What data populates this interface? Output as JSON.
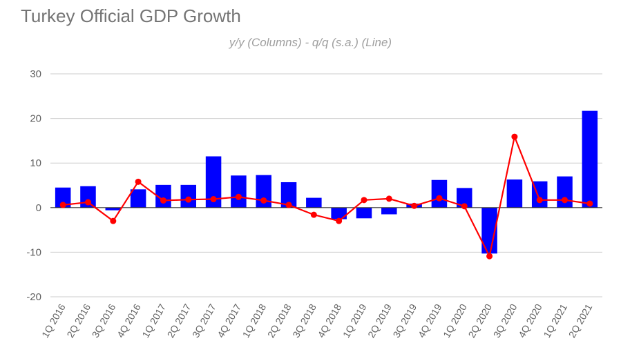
{
  "chart_data": {
    "type": "bar+line",
    "title": "Turkey Official GDP Growth",
    "subtitle": "y/y (Columns) - q/q (s.a.) (Line)",
    "categories": [
      "1Q 2016",
      "2Q 2016",
      "3Q 2016",
      "4Q 2016",
      "1Q 2017",
      "2Q 2017",
      "3Q 2017",
      "4Q 2017",
      "1Q 2018",
      "2Q 2018",
      "3Q 2018",
      "4Q 2018",
      "1Q 2019",
      "2Q 2019",
      "3Q 2019",
      "4Q 2019",
      "1Q 2020",
      "2Q 2020",
      "3Q 2020",
      "4Q 2020",
      "1Q 2021",
      "2Q 2021"
    ],
    "series": [
      {
        "name": "y/y (Columns)",
        "kind": "bar",
        "color": "#0000ff",
        "values": [
          4.5,
          4.8,
          -0.6,
          4.1,
          5.1,
          5.1,
          11.5,
          7.2,
          7.3,
          5.7,
          2.2,
          -2.6,
          -2.4,
          -1.5,
          0.9,
          6.2,
          4.4,
          -10.3,
          6.3,
          5.9,
          7.0,
          21.7
        ]
      },
      {
        "name": "q/q (s.a.) (Line)",
        "kind": "line",
        "color": "#ff0000",
        "values": [
          0.6,
          1.2,
          -3.0,
          5.8,
          1.6,
          1.8,
          1.9,
          2.4,
          1.6,
          0.6,
          -1.6,
          -3.0,
          1.7,
          2.0,
          0.4,
          2.1,
          0.3,
          -10.9,
          15.9,
          1.7,
          1.7,
          0.9
        ]
      }
    ],
    "yticks": [
      -20,
      -10,
      0,
      10,
      20,
      30
    ],
    "ylim": [
      -20,
      30
    ],
    "grid": true
  }
}
